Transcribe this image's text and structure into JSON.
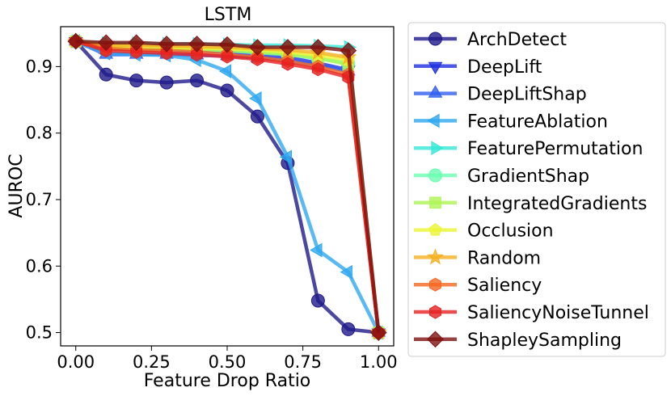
{
  "chart_data": {
    "type": "line",
    "title": "LSTM",
    "xlabel": "Feature Drop Ratio",
    "ylabel": "AUROC",
    "xlim": [
      -0.05,
      1.05
    ],
    "ylim": [
      0.48,
      0.96
    ],
    "xticks": [
      0.0,
      0.25,
      0.5,
      0.75,
      1.0
    ],
    "xtick_labels": [
      "0.00",
      "0.25",
      "0.50",
      "0.75",
      "1.00"
    ],
    "yticks": [
      0.5,
      0.6,
      0.7,
      0.8,
      0.9
    ],
    "ytick_labels": [
      "0.5",
      "0.6",
      "0.7",
      "0.8",
      "0.9"
    ],
    "grid": false,
    "legend_position": "outside-right",
    "x": [
      0.0,
      0.1,
      0.2,
      0.3,
      0.4,
      0.5,
      0.6,
      0.7,
      0.8,
      0.9,
      1.0
    ],
    "series": [
      {
        "name": "ArchDetect",
        "color": "#1f1a8a",
        "marker": "circle",
        "values": [
          0.938,
          0.888,
          0.879,
          0.876,
          0.879,
          0.864,
          0.825,
          0.755,
          0.548,
          0.505,
          0.5
        ]
      },
      {
        "name": "DeepLift",
        "color": "#1f2fe0",
        "marker": "triangle-down",
        "values": [
          0.938,
          0.927,
          0.927,
          0.926,
          0.924,
          0.922,
          0.918,
          0.914,
          0.905,
          0.895,
          0.5
        ]
      },
      {
        "name": "DeepLiftShap",
        "color": "#2f5ff0",
        "marker": "triangle-up",
        "values": [
          0.938,
          0.918,
          0.918,
          0.918,
          0.917,
          0.916,
          0.913,
          0.909,
          0.902,
          0.893,
          0.5
        ]
      },
      {
        "name": "FeatureAblation",
        "color": "#2ea8f0",
        "marker": "triangle-left",
        "values": [
          0.938,
          0.92,
          0.918,
          0.917,
          0.91,
          0.893,
          0.852,
          0.764,
          0.624,
          0.591,
          0.5
        ]
      },
      {
        "name": "FeaturePermutation",
        "color": "#35e8d8",
        "marker": "triangle-right",
        "values": [
          0.938,
          0.935,
          0.935,
          0.934,
          0.934,
          0.933,
          0.932,
          0.932,
          0.931,
          0.929,
          0.5
        ]
      },
      {
        "name": "GradientShap",
        "color": "#6affb0",
        "marker": "circle",
        "values": [
          0.938,
          0.928,
          0.927,
          0.926,
          0.925,
          0.924,
          0.921,
          0.918,
          0.912,
          0.905,
          0.5
        ]
      },
      {
        "name": "IntegratedGradients",
        "color": "#aef554",
        "marker": "square",
        "values": [
          0.938,
          0.929,
          0.928,
          0.927,
          0.926,
          0.925,
          0.922,
          0.919,
          0.913,
          0.903,
          0.5
        ]
      },
      {
        "name": "Occlusion",
        "color": "#ecf534",
        "marker": "pentagon",
        "values": [
          0.938,
          0.931,
          0.93,
          0.929,
          0.928,
          0.927,
          0.925,
          0.922,
          0.917,
          0.91,
          0.5
        ]
      },
      {
        "name": "Random",
        "color": "#f5b021",
        "marker": "star",
        "values": [
          0.938,
          0.932,
          0.932,
          0.931,
          0.93,
          0.929,
          0.927,
          0.925,
          0.921,
          0.914,
          0.5
        ]
      },
      {
        "name": "Saliency",
        "color": "#f56622",
        "marker": "hexagon",
        "values": [
          0.938,
          0.927,
          0.925,
          0.924,
          0.922,
          0.918,
          0.914,
          0.908,
          0.9,
          0.888,
          0.5
        ]
      },
      {
        "name": "SaliencyNoiseTunnel",
        "color": "#e62020",
        "marker": "hexagon",
        "values": [
          0.938,
          0.924,
          0.922,
          0.92,
          0.918,
          0.915,
          0.911,
          0.904,
          0.896,
          0.884,
          0.5
        ]
      },
      {
        "name": "ShapleySampling",
        "color": "#801010",
        "marker": "diamond",
        "values": [
          0.938,
          0.936,
          0.936,
          0.934,
          0.934,
          0.933,
          0.929,
          0.929,
          0.929,
          0.924,
          0.5
        ]
      }
    ]
  }
}
